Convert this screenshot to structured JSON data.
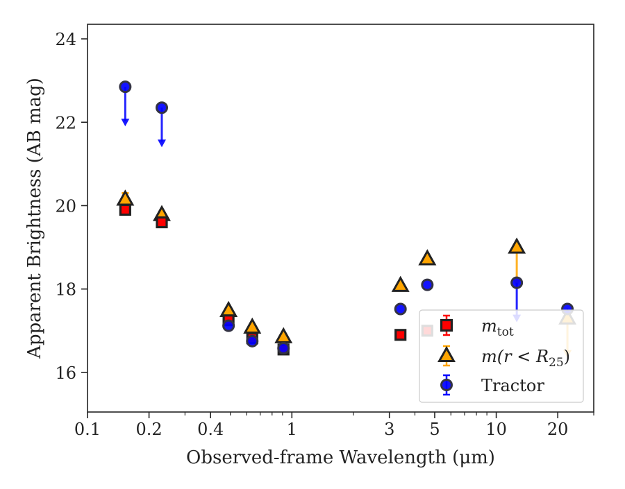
{
  "chart_data": {
    "type": "scatter",
    "xlabel": "Observed-frame Wavelength (μm)",
    "ylabel": "Apparent Brightness (AB mag)",
    "xscale": "log",
    "xlim": [
      0.1,
      30
    ],
    "ylim": [
      24.35,
      15.05
    ],
    "y_inverted": true,
    "grid": false,
    "legend_position": "lower-right",
    "x_ticks": [
      {
        "value": 0.1,
        "label": "0.1"
      },
      {
        "value": 0.2,
        "label": "0.2"
      },
      {
        "value": 0.4,
        "label": "0.4"
      },
      {
        "value": 1,
        "label": "1"
      },
      {
        "value": 3,
        "label": "3"
      },
      {
        "value": 5,
        "label": "5"
      },
      {
        "value": 10,
        "label": "10"
      },
      {
        "value": 20,
        "label": "20"
      }
    ],
    "y_ticks": [
      {
        "value": 16,
        "label": "16"
      },
      {
        "value": 18,
        "label": "18"
      },
      {
        "value": 20,
        "label": "20"
      },
      {
        "value": 22,
        "label": "22"
      },
      {
        "value": 24,
        "label": "24"
      }
    ],
    "series": [
      {
        "name": "m_tot",
        "legend_main": "m",
        "legend_sub": "tot",
        "marker": "square",
        "color": "#ff0000",
        "edge_color": "#222222",
        "points": [
          {
            "x": 0.153,
            "y": 19.9
          },
          {
            "x": 0.231,
            "y": 19.6
          },
          {
            "x": 0.49,
            "y": 17.25
          },
          {
            "x": 0.64,
            "y": 16.82
          },
          {
            "x": 0.91,
            "y": 16.55
          },
          {
            "x": 3.4,
            "y": 16.9
          },
          {
            "x": 4.6,
            "y": 17.0
          }
        ]
      },
      {
        "name": "m(r < R25)",
        "legend_main": "m(r < R",
        "legend_sub": "25",
        "legend_close": ")",
        "marker": "triangle",
        "color": "#ffa500",
        "edge_color": "#222222",
        "points": [
          {
            "x": 0.153,
            "y": 20.15,
            "err": 0.15
          },
          {
            "x": 0.231,
            "y": 19.78
          },
          {
            "x": 0.49,
            "y": 17.48
          },
          {
            "x": 0.64,
            "y": 17.08
          },
          {
            "x": 0.91,
            "y": 16.85
          },
          {
            "x": 3.4,
            "y": 18.08
          },
          {
            "x": 4.6,
            "y": 18.72
          },
          {
            "x": 12.6,
            "y": 19.0,
            "upper_limit": true
          },
          {
            "x": 22.3,
            "y": 17.3,
            "upper_limit": true
          }
        ]
      },
      {
        "name": "Tractor",
        "legend_main": "Tractor",
        "marker": "circle",
        "color": "#0000ff",
        "edge_color": "#222222",
        "points": [
          {
            "x": 0.153,
            "y": 22.85,
            "upper_limit": true
          },
          {
            "x": 0.231,
            "y": 22.35,
            "upper_limit": true
          },
          {
            "x": 0.49,
            "y": 17.12
          },
          {
            "x": 0.64,
            "y": 16.75
          },
          {
            "x": 0.91,
            "y": 16.58
          },
          {
            "x": 3.4,
            "y": 17.52
          },
          {
            "x": 4.6,
            "y": 18.1
          },
          {
            "x": 12.6,
            "y": 18.15,
            "upper_limit": true
          },
          {
            "x": 22.3,
            "y": 17.52
          }
        ]
      }
    ]
  }
}
